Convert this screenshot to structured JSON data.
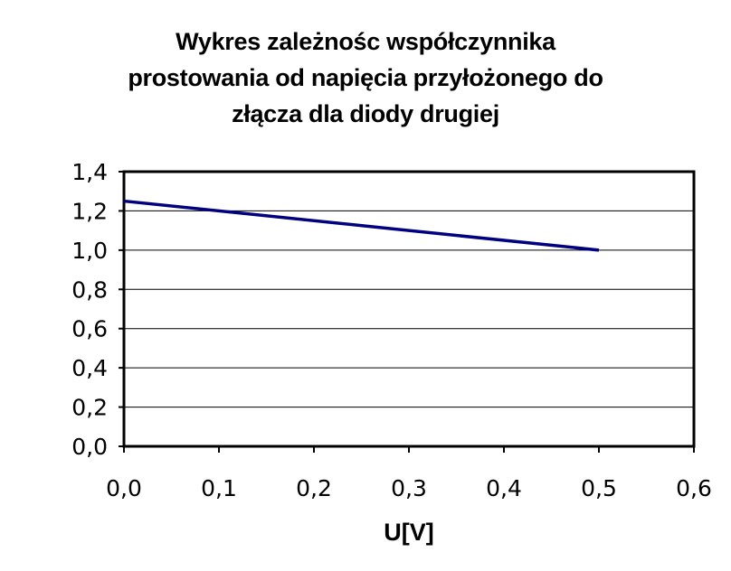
{
  "chart_data": {
    "type": "line",
    "title_lines": [
      "Wykres zależnośc współczynnika",
      "prostowania od napięcia przyłożonego do",
      "złącza dla diody drugiej"
    ],
    "xlabel": "U[V]",
    "ylabel": "",
    "xlim": [
      0,
      0.6
    ],
    "ylim": [
      0,
      1.4
    ],
    "x_ticks": [
      "0,0",
      "0,1",
      "0,2",
      "0,3",
      "0,4",
      "0,5",
      "0,6"
    ],
    "y_ticks": [
      "0,0",
      "0,2",
      "0,4",
      "0,6",
      "0,8",
      "1,0",
      "1,2",
      "1,4"
    ],
    "grid": "horizontal",
    "legend": "none",
    "series": [
      {
        "x": [
          0.0,
          0.5
        ],
        "y": [
          1.25,
          1.0
        ],
        "color": "#000080"
      }
    ]
  }
}
